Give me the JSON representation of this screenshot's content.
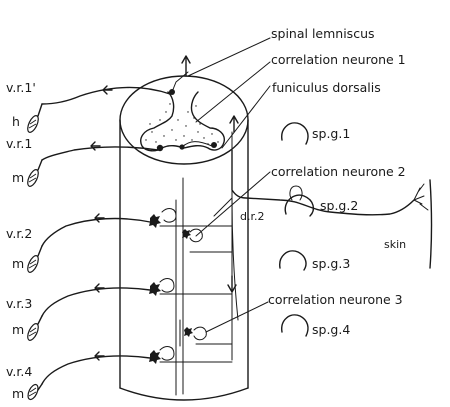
{
  "labels": {
    "spinal_lemniscus": "spinal lemniscus",
    "correlation_neurone_1": "correlation neurone 1",
    "funiculus_dorsalis": "funiculus dorsalis",
    "correlation_neurone_2": "correlation neurone 2",
    "correlation_neurone_3": "correlation neurone 3",
    "sp_g_1": "sp.g.1",
    "sp_g_2": "sp.g.2",
    "sp_g_3": "sp.g.3",
    "sp_g_4": "sp.g.4",
    "d_r_2": "d.r.2",
    "skin": "skin",
    "v_r_1_prime": "v.r.1'",
    "v_r_1": "v.r.1",
    "v_r_2": "v.r.2",
    "v_r_3": "v.r.3",
    "v_r_4": "v.r.4",
    "h": "h",
    "m": "m"
  }
}
